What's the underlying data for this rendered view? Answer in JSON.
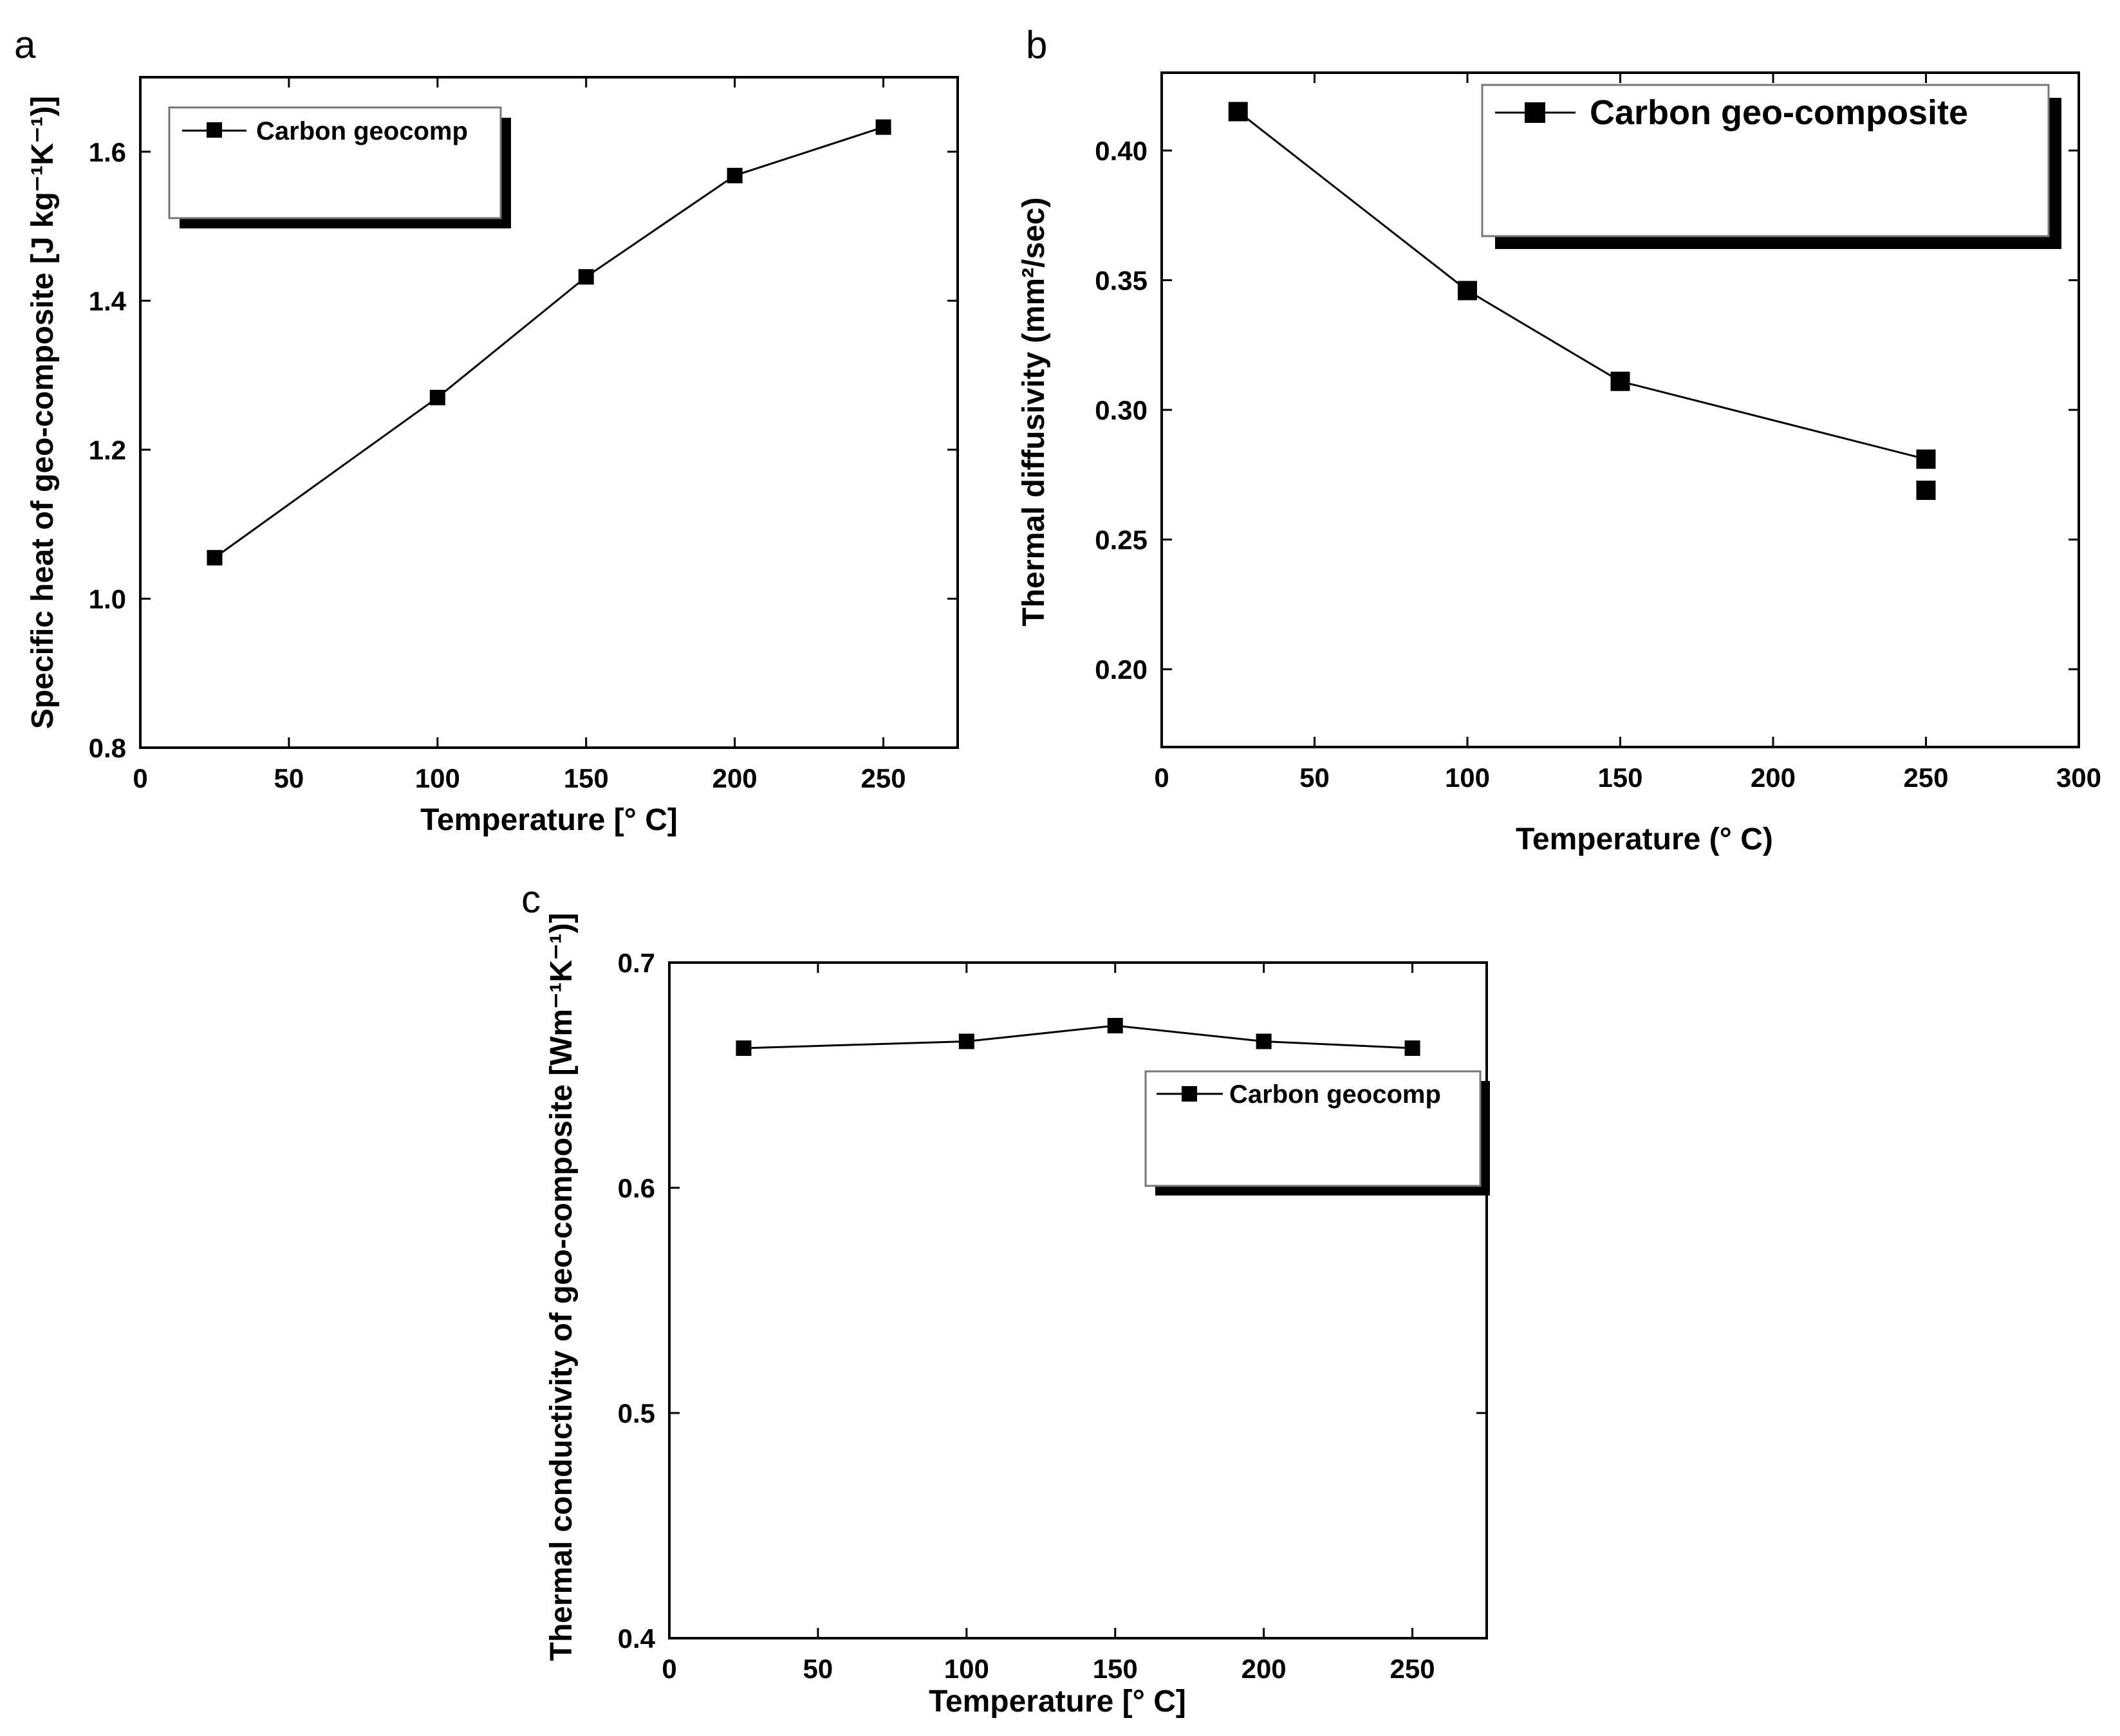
{
  "chart_data": [
    {
      "panel_label": "a",
      "type": "line",
      "series": [
        {
          "name": "Carbon geocomp",
          "x": [
            25,
            100,
            150,
            200,
            250
          ],
          "y": [
            1.055,
            1.27,
            1.432,
            1.568,
            1.633
          ]
        }
      ],
      "xlabel": "Temperature [° C]",
      "ylabel": "Specific heat of geo-composite [J kg⁻¹K⁻¹)]",
      "xlim": [
        0,
        275
      ],
      "ylim": [
        0.8,
        1.7
      ],
      "xticks": [
        0,
        50,
        100,
        150,
        200,
        250
      ],
      "yticks": [
        0.8,
        1.0,
        1.2,
        1.4,
        1.6
      ],
      "xtick_labels": [
        "0",
        "50",
        "100",
        "150",
        "200",
        "250"
      ],
      "ytick_labels": [
        "0.8",
        "1.0",
        "1.2",
        "1.4",
        "1.6"
      ],
      "legend_label": "Carbon geocomp",
      "legend_position": "top-left",
      "grid": false
    },
    {
      "panel_label": "b",
      "type": "line",
      "series": [
        {
          "name": "Carbon geo-composite",
          "x": [
            25,
            100,
            150,
            250
          ],
          "y": [
            0.415,
            0.346,
            0.311,
            0.281
          ]
        },
        {
          "name": "extra marker",
          "x": [
            250
          ],
          "y": [
            0.269
          ]
        }
      ],
      "xlabel": "Temperature (° C)",
      "ylabel": "Thermal diffusivity (mm²/sec)",
      "xlim": [
        0,
        300
      ],
      "ylim": [
        0.17,
        0.43
      ],
      "xticks": [
        0,
        50,
        100,
        150,
        200,
        250,
        300
      ],
      "yticks": [
        0.2,
        0.25,
        0.3,
        0.35,
        0.4
      ],
      "xtick_labels": [
        "0",
        "50",
        "100",
        "150",
        "200",
        "250",
        "300"
      ],
      "ytick_labels": [
        "0.20",
        "0.25",
        "0.30",
        "0.35",
        "0.40"
      ],
      "legend_label": "Carbon geo-composite",
      "legend_position": "top-right",
      "grid": false
    },
    {
      "panel_label": "c",
      "type": "line",
      "series": [
        {
          "name": "Carbon geocomp",
          "x": [
            25,
            100,
            150,
            200,
            250
          ],
          "y": [
            0.662,
            0.665,
            0.672,
            0.665,
            0.662
          ]
        }
      ],
      "xlabel": "Temperature [° C]",
      "ylabel": "Thermal conductivity of geo-composite [Wm⁻¹K⁻¹)]",
      "xlim": [
        0,
        275
      ],
      "ylim": [
        0.4,
        0.7
      ],
      "xticks": [
        0,
        50,
        100,
        150,
        200,
        250
      ],
      "yticks": [
        0.4,
        0.5,
        0.6,
        0.7
      ],
      "xtick_labels": [
        "0",
        "50",
        "100",
        "150",
        "200",
        "250"
      ],
      "ytick_labels": [
        "0.4",
        "0.5",
        "0.6",
        "0.7"
      ],
      "legend_label": "Carbon geocomp",
      "legend_position": "right",
      "grid": false
    }
  ]
}
